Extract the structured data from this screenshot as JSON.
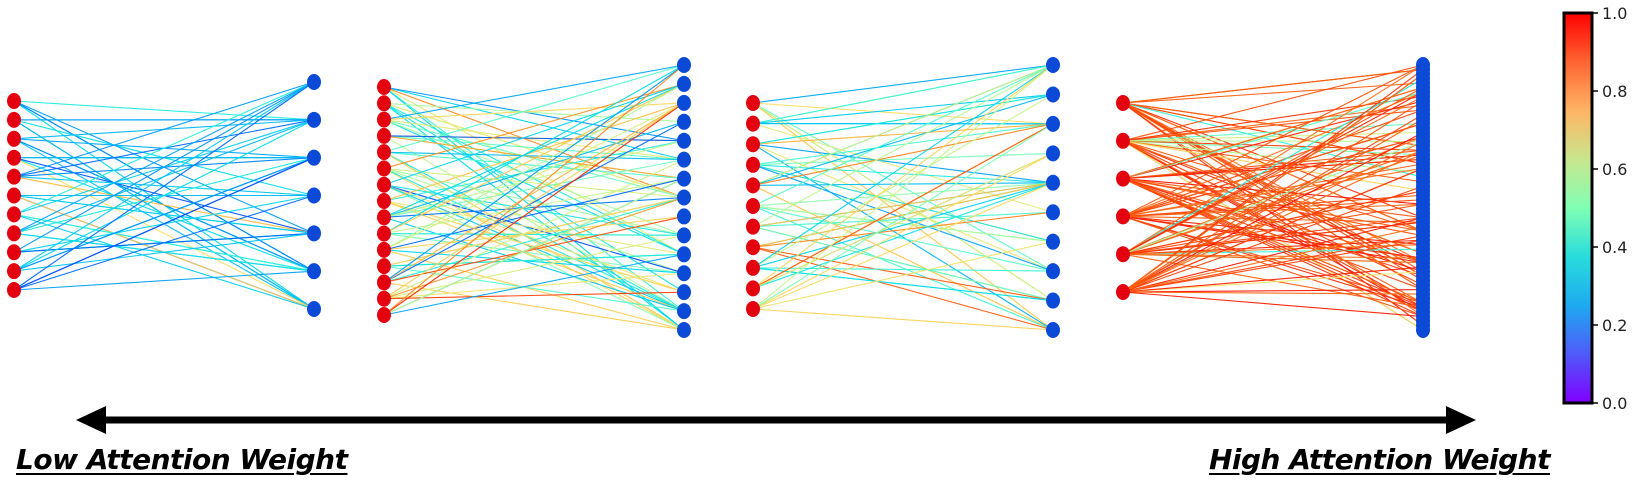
{
  "captions": {
    "left": "Low Attention Weight",
    "right": "High Attention Weight"
  },
  "colorbar": {
    "colormap": "rainbow",
    "min": 0.0,
    "max": 1.0,
    "tick_labels": [
      "0.0",
      "0.2",
      "0.4",
      "0.6",
      "0.8",
      "1.0"
    ]
  },
  "node_colors": {
    "source": "#e3000f",
    "target": "#0a4ad6"
  },
  "graphs": [
    {
      "source_nodes": 11,
      "target_nodes": 7,
      "attention_level": "low"
    },
    {
      "source_nodes": 15,
      "target_nodes": 15,
      "attention_level": "mixed"
    },
    {
      "source_nodes": 11,
      "target_nodes": 10,
      "attention_level": "mixed"
    },
    {
      "source_nodes": 6,
      "target_nodes": 60,
      "attention_level": "high"
    }
  ],
  "arrow": {
    "direction": "both"
  }
}
